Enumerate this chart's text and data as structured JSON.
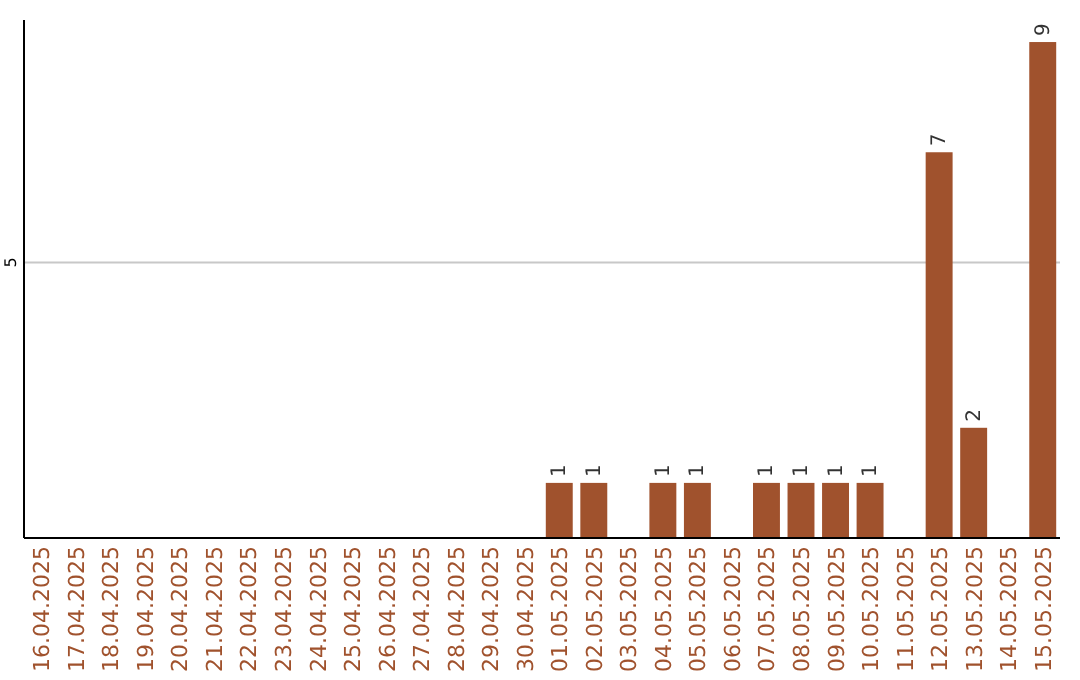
{
  "chart_data": {
    "type": "bar",
    "categories": [
      "16.04.2025",
      "17.04.2025",
      "18.04.2025",
      "19.04.2025",
      "20.04.2025",
      "21.04.2025",
      "22.04.2025",
      "23.04.2025",
      "24.04.2025",
      "25.04.2025",
      "26.04.2025",
      "27.04.2025",
      "28.04.2025",
      "29.04.2025",
      "30.04.2025",
      "01.05.2025",
      "02.05.2025",
      "03.05.2025",
      "04.05.2025",
      "05.05.2025",
      "06.05.2025",
      "07.05.2025",
      "08.05.2025",
      "09.05.2025",
      "10.05.2025",
      "11.05.2025",
      "12.05.2025",
      "13.05.2025",
      "14.05.2025",
      "15.05.2025"
    ],
    "values": [
      null,
      null,
      null,
      null,
      null,
      null,
      null,
      null,
      null,
      null,
      null,
      null,
      null,
      null,
      null,
      1,
      1,
      null,
      1,
      1,
      null,
      1,
      1,
      1,
      1,
      null,
      7,
      2,
      null,
      9
    ],
    "data_labels": true,
    "color": "#a0522d",
    "ylim": [
      0,
      9.4
    ],
    "ref_lines": [
      {
        "axis": "y",
        "value": 5,
        "label": "5",
        "color": "#c8c8c8"
      }
    ]
  }
}
